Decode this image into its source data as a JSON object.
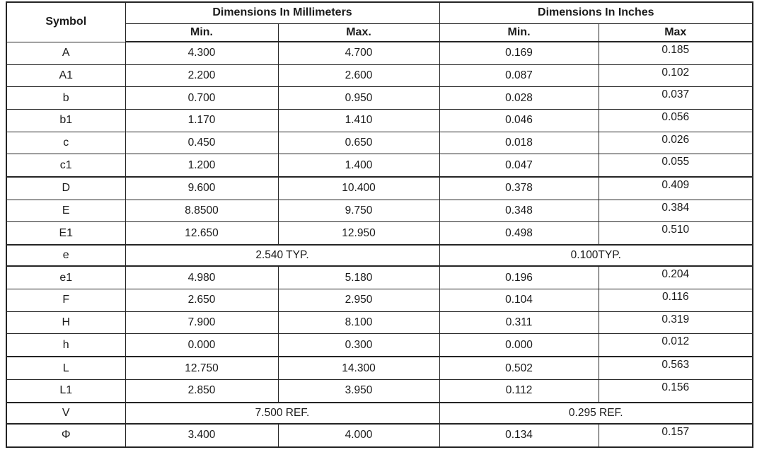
{
  "table": {
    "header": {
      "symbol": "Symbol",
      "mm_group": "Dimensions In Millimeters",
      "in_group": "Dimensions In Inches",
      "mm_min": "Min.",
      "mm_max": "Max.",
      "in_min": "Min.",
      "in_max": "Max"
    },
    "rows": [
      {
        "symbol": "A",
        "mm_min": "4.300",
        "mm_max": "4.700",
        "in_min": "0.169",
        "in_max": "0.185"
      },
      {
        "symbol": "A1",
        "mm_min": "2.200",
        "mm_max": "2.600",
        "in_min": "0.087",
        "in_max": "0.102"
      },
      {
        "symbol": "b",
        "mm_min": "0.700",
        "mm_max": "0.950",
        "in_min": "0.028",
        "in_max": "0.037"
      },
      {
        "symbol": "b1",
        "mm_min": "1.170",
        "mm_max": "1.410",
        "in_min": "0.046",
        "in_max": "0.056"
      },
      {
        "symbol": "c",
        "mm_min": "0.450",
        "mm_max": "0.650",
        "in_min": "0.018",
        "in_max": "0.026"
      },
      {
        "symbol": "c1",
        "mm_min": "1.200",
        "mm_max": "1.400",
        "in_min": "0.047",
        "in_max": "0.055"
      },
      {
        "symbol": "D",
        "mm_min": "9.600",
        "mm_max": "10.400",
        "in_min": "0.378",
        "in_max": "0.409"
      },
      {
        "symbol": "E",
        "mm_min": "8.8500",
        "mm_max": "9.750",
        "in_min": "0.348",
        "in_max": "0.384"
      },
      {
        "symbol": "E1",
        "mm_min": "12.650",
        "mm_max": "12.950",
        "in_min": "0.498",
        "in_max": "0.510"
      },
      {
        "symbol": "e",
        "span_mm": "2.540 TYP.",
        "span_in": "0.100TYP."
      },
      {
        "symbol": "e1",
        "mm_min": "4.980",
        "mm_max": "5.180",
        "in_min": "0.196",
        "in_max": "0.204"
      },
      {
        "symbol": "F",
        "mm_min": "2.650",
        "mm_max": "2.950",
        "in_min": "0.104",
        "in_max": "0.116"
      },
      {
        "symbol": "H",
        "mm_min": "7.900",
        "mm_max": "8.100",
        "in_min": "0.311",
        "in_max": "0.319"
      },
      {
        "symbol": "h",
        "mm_min": "0.000",
        "mm_max": "0.300",
        "in_min": "0.000",
        "in_max": "0.012"
      },
      {
        "symbol": "L",
        "mm_min": "12.750",
        "mm_max": "14.300",
        "in_min": "0.502",
        "in_max": "0.563"
      },
      {
        "symbol": "L1",
        "mm_min": "2.850",
        "mm_max": "3.950",
        "in_min": "0.112",
        "in_max": "0.156"
      },
      {
        "symbol": "V",
        "span_mm": "7.500 REF.",
        "span_in": "0.295 REF."
      },
      {
        "symbol": "Φ",
        "mm_min": "3.400",
        "mm_max": "4.000",
        "in_min": "0.134",
        "in_max": "0.157"
      }
    ]
  },
  "colors": {
    "line": "#242424",
    "background": "#ffffff",
    "text": "#1a1a1a"
  }
}
